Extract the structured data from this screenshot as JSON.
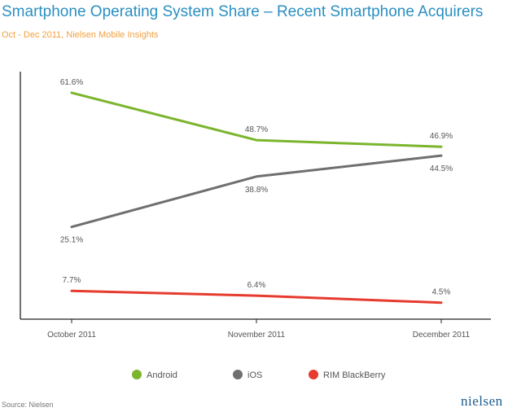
{
  "header": {
    "title": "Smartphone Operating System Share – Recent Smartphone Acquirers",
    "subtitle": "Oct - Dec 2011, Nielsen Mobile Insights"
  },
  "footer": {
    "source": "Source: Nielsen",
    "logo_text": "nielsen"
  },
  "chart_data": {
    "type": "line",
    "title": "Smartphone Operating System Share – Recent Smartphone Acquirers",
    "subtitle": "Oct - Dec 2011, Nielsen Mobile Insights",
    "xlabel": "",
    "ylabel": "",
    "categories": [
      "October 2011",
      "November 2011",
      "December 2011"
    ],
    "ylim": [
      0,
      66
    ],
    "grid": false,
    "legend_position": "bottom",
    "series": [
      {
        "name": "Android",
        "color": "#7bb52d",
        "values": [
          61.6,
          48.7,
          46.9
        ],
        "labels": [
          "61.6%",
          "48.7%",
          "46.9%"
        ]
      },
      {
        "name": "iOS",
        "color": "#6f6f6f",
        "values": [
          25.1,
          38.8,
          44.5
        ],
        "labels": [
          "25.1%",
          "38.8%",
          "44.5%"
        ]
      },
      {
        "name": "RIM BlackBerry",
        "color": "#e63b2e",
        "values": [
          7.7,
          6.4,
          4.5
        ],
        "labels": [
          "7.7%",
          "6.4%",
          "4.5%"
        ]
      }
    ]
  }
}
